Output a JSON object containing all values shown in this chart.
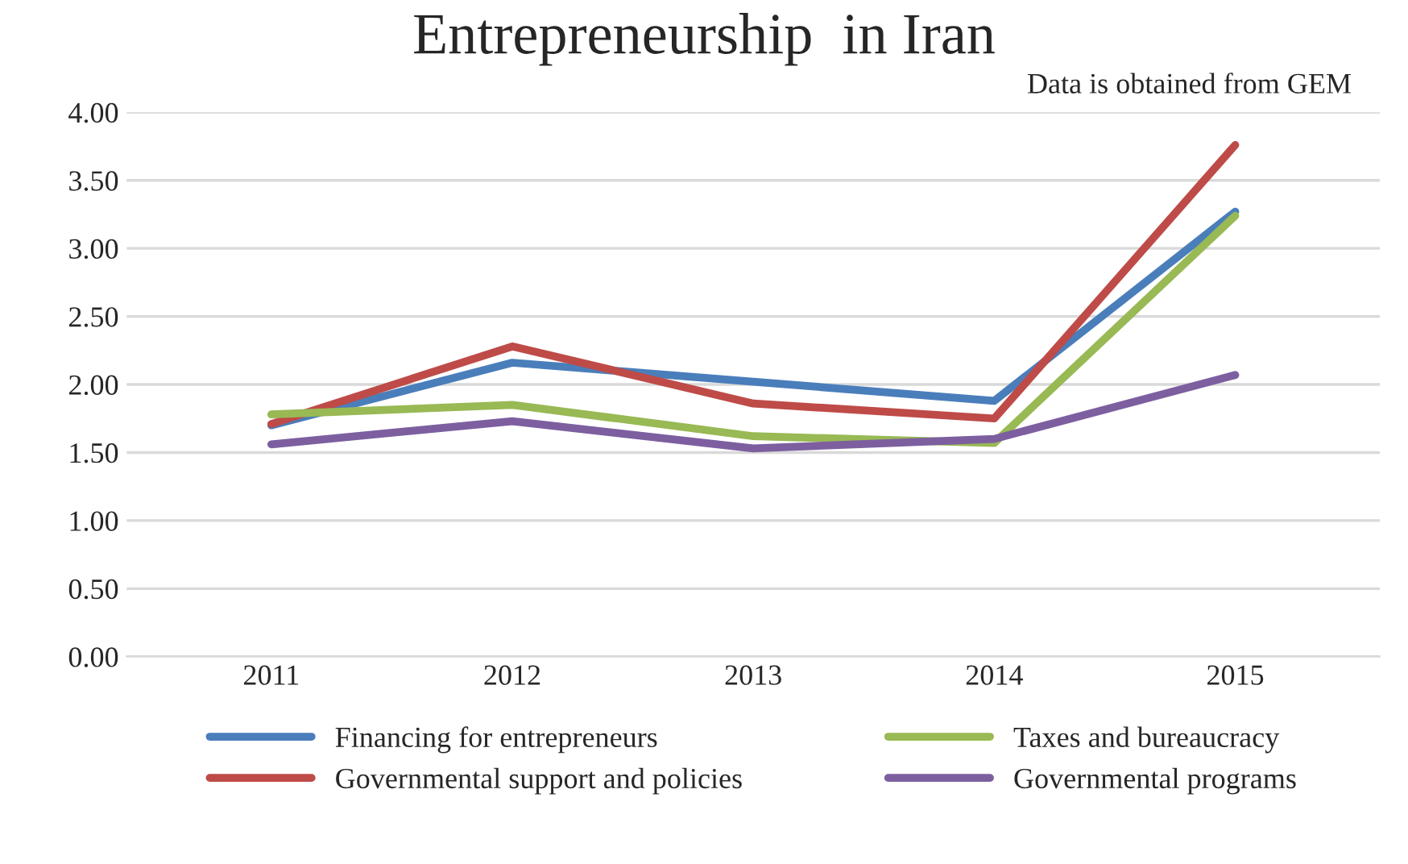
{
  "chart_data": {
    "type": "line",
    "title": "Entrepreneurship  in Iran",
    "annotations": [
      "Data is obtained from GEM"
    ],
    "categories": [
      "2011",
      "2012",
      "2013",
      "2014",
      "2015"
    ],
    "series": [
      {
        "name": "Financing for entrepreneurs",
        "color": "#4a7ebb",
        "values": [
          1.7,
          2.16,
          2.02,
          1.88,
          3.27
        ]
      },
      {
        "name": "Governmental support and policies",
        "color": "#be4b48",
        "values": [
          1.71,
          2.28,
          1.86,
          1.75,
          3.76
        ]
      },
      {
        "name": "Taxes and bureaucracy",
        "color": "#98b954",
        "values": [
          1.78,
          1.85,
          1.62,
          1.57,
          3.24
        ]
      },
      {
        "name": "Governmental programs",
        "color": "#7d5fa0",
        "values": [
          1.56,
          1.73,
          1.53,
          1.6,
          2.07
        ]
      }
    ],
    "ylim": [
      0,
      4
    ],
    "yticks": [
      {
        "value": 0,
        "label": "0.00"
      },
      {
        "value": 0.5,
        "label": "0.50"
      },
      {
        "value": 1,
        "label": "1.00"
      },
      {
        "value": 1.5,
        "label": "1.50"
      },
      {
        "value": 2,
        "label": "2.00"
      },
      {
        "value": 2.5,
        "label": "2.50"
      },
      {
        "value": 3,
        "label": "3.00"
      },
      {
        "value": 3.5,
        "label": "3.50"
      },
      {
        "value": 4,
        "label": "4.00"
      }
    ],
    "grid": "y",
    "legend": "bottom",
    "marker": "none",
    "line_style": "solid"
  }
}
